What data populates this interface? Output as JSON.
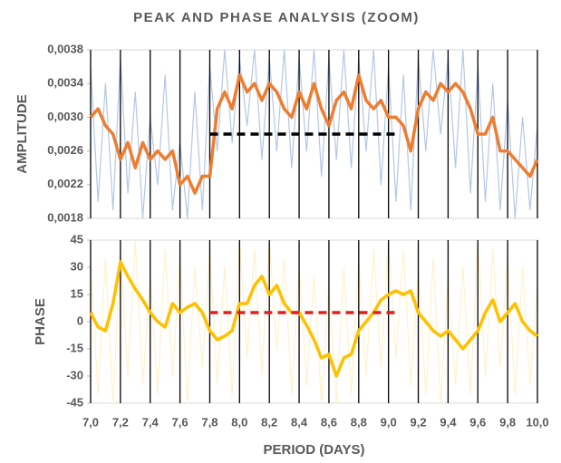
{
  "title": "PEAK AND PHASE ANALYSIS (ZOOM)",
  "chart_data": [
    {
      "type": "line",
      "ylabel": "AMPLITUDE",
      "xlim": [
        7.0,
        10.0
      ],
      "ylim": [
        0.0018,
        0.0038
      ],
      "yticks": [
        {
          "value": 0.0018,
          "label": "0,0018"
        },
        {
          "value": 0.0022,
          "label": "0,0022"
        },
        {
          "value": 0.0026,
          "label": "0,0026"
        },
        {
          "value": 0.003,
          "label": "0,0030"
        },
        {
          "value": 0.0034,
          "label": "0,0034"
        },
        {
          "value": 0.0038,
          "label": "0,0038"
        }
      ],
      "grid": "x",
      "x": [
        7.0,
        7.05,
        7.1,
        7.15,
        7.2,
        7.25,
        7.3,
        7.35,
        7.4,
        7.45,
        7.5,
        7.55,
        7.6,
        7.65,
        7.7,
        7.75,
        7.8,
        7.85,
        7.9,
        7.95,
        8.0,
        8.05,
        8.1,
        8.15,
        8.2,
        8.25,
        8.3,
        8.35,
        8.4,
        8.45,
        8.5,
        8.55,
        8.6,
        8.65,
        8.7,
        8.75,
        8.8,
        8.85,
        8.9,
        8.95,
        9.0,
        9.05,
        9.1,
        9.15,
        9.2,
        9.25,
        9.3,
        9.35,
        9.4,
        9.45,
        9.5,
        9.55,
        9.6,
        9.65,
        9.7,
        9.75,
        9.8,
        9.85,
        9.9,
        9.95,
        10.0
      ],
      "series": [
        {
          "color": "#b4c7e7",
          "width": 1.2,
          "values": [
            0.0036,
            0.002,
            0.0034,
            0.0019,
            0.0037,
            0.0021,
            0.0033,
            0.0018,
            0.003,
            0.0022,
            0.0035,
            0.0019,
            0.0027,
            0.0018,
            0.0033,
            0.0019,
            0.0036,
            0.0026,
            0.0038,
            0.0027,
            0.0037,
            0.0029,
            0.0038,
            0.0025,
            0.0037,
            0.0026,
            0.0038,
            0.0024,
            0.0037,
            0.0026,
            0.0038,
            0.0023,
            0.0037,
            0.0025,
            0.0038,
            0.0024,
            0.0037,
            0.0026,
            0.0038,
            0.0022,
            0.0036,
            0.002,
            0.0035,
            0.0019,
            0.0037,
            0.0026,
            0.0038,
            0.0028,
            0.0037,
            0.0024,
            0.0038,
            0.0021,
            0.0036,
            0.002,
            0.0034,
            0.0019,
            0.0032,
            0.0018,
            0.003,
            0.0019,
            0.0029
          ]
        },
        {
          "color": "#ed7d31",
          "width": 3.5,
          "values": [
            0.003,
            0.0031,
            0.0029,
            0.0028,
            0.0025,
            0.0027,
            0.0024,
            0.0027,
            0.0025,
            0.0026,
            0.0025,
            0.0026,
            0.0022,
            0.0023,
            0.0021,
            0.0023,
            0.0023,
            0.0031,
            0.0033,
            0.0031,
            0.0035,
            0.0033,
            0.0034,
            0.0032,
            0.0034,
            0.0033,
            0.0031,
            0.003,
            0.0033,
            0.0031,
            0.0034,
            0.0031,
            0.0029,
            0.0032,
            0.0033,
            0.0031,
            0.0035,
            0.0032,
            0.0031,
            0.0032,
            0.003,
            0.003,
            0.0029,
            0.0026,
            0.0031,
            0.0033,
            0.0032,
            0.0034,
            0.0033,
            0.0034,
            0.0033,
            0.0031,
            0.0028,
            0.0028,
            0.003,
            0.0026,
            0.0026,
            0.0025,
            0.0024,
            0.0023,
            0.0025
          ]
        }
      ],
      "hlines": [
        {
          "x": [
            7.8,
            9.05
          ],
          "value": 0.0028,
          "color": "#000000"
        }
      ]
    },
    {
      "type": "line",
      "ylabel": "PHASE",
      "xlabel": "PERIOD (DAYS)",
      "xlim": [
        7.0,
        10.0
      ],
      "ylim": [
        -45,
        45
      ],
      "yticks": [
        -45,
        -30,
        -15,
        0,
        15,
        30,
        45
      ],
      "xticks": [
        {
          "value": 7.0,
          "label": "7,0"
        },
        {
          "value": 7.2,
          "label": "7,2"
        },
        {
          "value": 7.4,
          "label": "7,4"
        },
        {
          "value": 7.6,
          "label": "7,6"
        },
        {
          "value": 7.8,
          "label": "7,8"
        },
        {
          "value": 8.0,
          "label": "8,0"
        },
        {
          "value": 8.2,
          "label": "8,2"
        },
        {
          "value": 8.4,
          "label": "8,4"
        },
        {
          "value": 8.6,
          "label": "8,6"
        },
        {
          "value": 8.8,
          "label": "8,8"
        },
        {
          "value": 9.0,
          "label": "9,0"
        },
        {
          "value": 9.2,
          "label": "9,2"
        },
        {
          "value": 9.4,
          "label": "9,4"
        },
        {
          "value": 9.6,
          "label": "9,6"
        },
        {
          "value": 9.8,
          "label": "9,8"
        },
        {
          "value": 10.0,
          "label": "10,0"
        }
      ],
      "grid": "x",
      "x": [
        7.0,
        7.05,
        7.1,
        7.15,
        7.2,
        7.25,
        7.3,
        7.35,
        7.4,
        7.45,
        7.5,
        7.55,
        7.6,
        7.65,
        7.7,
        7.75,
        7.8,
        7.85,
        7.9,
        7.95,
        8.0,
        8.05,
        8.1,
        8.15,
        8.2,
        8.25,
        8.3,
        8.35,
        8.4,
        8.45,
        8.5,
        8.55,
        8.6,
        8.65,
        8.7,
        8.75,
        8.8,
        8.85,
        8.9,
        8.95,
        9.0,
        9.05,
        9.1,
        9.15,
        9.2,
        9.25,
        9.3,
        9.35,
        9.4,
        9.45,
        9.5,
        9.55,
        9.6,
        9.65,
        9.7,
        9.75,
        9.8,
        9.85,
        9.9,
        9.95,
        10.0
      ],
      "series": [
        {
          "color": "#fff2cc",
          "width": 1.2,
          "values": [
            30,
            -40,
            35,
            -45,
            40,
            -30,
            45,
            -35,
            25,
            -40,
            40,
            -30,
            35,
            -45,
            30,
            -25,
            40,
            -35,
            30,
            -40,
            45,
            -20,
            40,
            -30,
            45,
            -15,
            35,
            -40,
            30,
            -35,
            25,
            -45,
            20,
            -45,
            30,
            -40,
            35,
            -30,
            40,
            -25,
            45,
            -20,
            40,
            -35,
            30,
            -40,
            35,
            -45,
            25,
            -35,
            30,
            -40,
            45,
            -30,
            40,
            -25,
            35,
            -40,
            30,
            -35,
            20
          ]
        },
        {
          "color": "#ffc000",
          "width": 3.5,
          "values": [
            5,
            -3,
            -5,
            10,
            33,
            25,
            18,
            12,
            5,
            0,
            -3,
            10,
            5,
            8,
            10,
            5,
            -5,
            -10,
            -8,
            -5,
            10,
            10,
            20,
            25,
            15,
            20,
            10,
            5,
            5,
            -2,
            -10,
            -20,
            -18,
            -30,
            -20,
            -18,
            -5,
            0,
            5,
            12,
            15,
            17,
            15,
            17,
            5,
            0,
            -5,
            -8,
            -5,
            -10,
            -15,
            -10,
            -5,
            5,
            12,
            0,
            5,
            10,
            0,
            -5,
            -8
          ]
        }
      ],
      "hlines": [
        {
          "x": [
            7.8,
            9.05
          ],
          "value": 5,
          "color": "#e02020"
        }
      ]
    }
  ]
}
